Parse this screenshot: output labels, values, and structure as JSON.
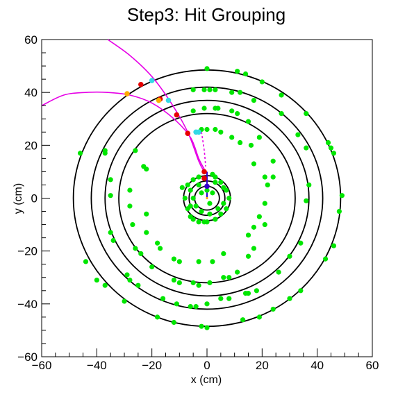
{
  "chart_data": {
    "type": "scatter",
    "title": "Step3: Hit Grouping",
    "xlabel": "x (cm)",
    "ylabel": "y (cm)",
    "xlim": [
      -60,
      60
    ],
    "ylim": [
      -60,
      60
    ],
    "xticks": [
      -60,
      -40,
      -20,
      0,
      20,
      40,
      60
    ],
    "yticks": [
      -60,
      -40,
      -20,
      0,
      20,
      40,
      60
    ],
    "tick_labels": {
      "x": [
        "−60",
        "−40",
        "−20",
        "0",
        "20",
        "40",
        "60"
      ],
      "y": [
        "−60",
        "−40",
        "−20",
        "0",
        "20",
        "40",
        "60"
      ]
    },
    "grid": false,
    "legend": "none",
    "colors": {
      "ring": "#000000",
      "hit": "#00e600",
      "grouped_hit_red": "#e60000",
      "grouped_hit_cyan": "#33d9e6",
      "grouped_hit_orange": "#ffaa00",
      "track": "#e600e6",
      "vertex": "#3300cc",
      "center": "#ffaa00"
    },
    "detector_rings": [
      {
        "r": 4.5
      },
      {
        "r": 6.5
      },
      {
        "r": 8.5
      },
      {
        "r": 32
      },
      {
        "r": 37
      },
      {
        "r": 42
      },
      {
        "r": 48.5
      }
    ],
    "tracks": [
      {
        "style": "solid",
        "points": [
          [
            -36,
            60
          ],
          [
            -28,
            54
          ],
          [
            -20,
            46
          ],
          [
            -13,
            36
          ],
          [
            -7,
            25
          ],
          [
            -3,
            14
          ],
          [
            -1,
            10
          ]
        ]
      },
      {
        "style": "solid",
        "points": [
          [
            -60,
            35
          ],
          [
            -52,
            39
          ],
          [
            -44,
            40
          ],
          [
            -36,
            40
          ],
          [
            -28,
            39
          ],
          [
            -20,
            36
          ],
          [
            -12,
            30
          ],
          [
            -6,
            23
          ],
          [
            -3,
            15
          ],
          [
            -1,
            11
          ]
        ]
      },
      {
        "style": "dotted",
        "points": [
          [
            -2,
            25
          ],
          [
            -1,
            18
          ],
          [
            -0.5,
            12
          ]
        ]
      }
    ],
    "vertex_line": {
      "points": [
        [
          0,
          0
        ],
        [
          0,
          10
        ]
      ]
    },
    "center_point": {
      "x": 0,
      "y": 0
    },
    "hits_green": [
      [
        0,
        49
      ],
      [
        11,
        48
      ],
      [
        14,
        47
      ],
      [
        20,
        44
      ],
      [
        27,
        39
      ],
      [
        36,
        32
      ],
      [
        44,
        21
      ],
      [
        45,
        19
      ],
      [
        46,
        17
      ],
      [
        49,
        1
      ],
      [
        48,
        -5
      ],
      [
        46,
        -18
      ],
      [
        43,
        -23
      ],
      [
        34,
        -35
      ],
      [
        30,
        -38
      ],
      [
        24,
        -42
      ],
      [
        19,
        -45
      ],
      [
        13,
        -46
      ],
      [
        0,
        -49
      ],
      [
        -2,
        -48.5
      ],
      [
        -12,
        -47
      ],
      [
        -18,
        -45
      ],
      [
        -30,
        -39
      ],
      [
        -37,
        -33
      ],
      [
        -40,
        -31
      ],
      [
        -44,
        -24
      ],
      [
        -46,
        17
      ],
      [
        -5,
        41
      ],
      [
        -1,
        41
      ],
      [
        1,
        41
      ],
      [
        3,
        41
      ],
      [
        9,
        40
      ],
      [
        12,
        40
      ],
      [
        17,
        37
      ],
      [
        27,
        32
      ],
      [
        33,
        24
      ],
      [
        36,
        19
      ],
      [
        37,
        5
      ],
      [
        36,
        -1
      ],
      [
        34,
        -17
      ],
      [
        30,
        -22
      ],
      [
        26,
        -28
      ],
      [
        18,
        -35
      ],
      [
        15,
        -36
      ],
      [
        14,
        -36
      ],
      [
        8,
        -38
      ],
      [
        5,
        -38
      ],
      [
        0,
        -40
      ],
      [
        -4,
        -41
      ],
      [
        -6,
        -41
      ],
      [
        -11,
        -40
      ],
      [
        -16,
        -38
      ],
      [
        -25,
        -33
      ],
      [
        -28,
        -31
      ],
      [
        -29,
        -29
      ],
      [
        -34,
        -16
      ],
      [
        -35,
        -13
      ],
      [
        -35,
        1
      ],
      [
        -35,
        7
      ],
      [
        -37,
        17
      ],
      [
        -37,
        18
      ],
      [
        -5,
        33
      ],
      [
        -1,
        34
      ],
      [
        3,
        34
      ],
      [
        4,
        34
      ],
      [
        9,
        33
      ],
      [
        11,
        32
      ],
      [
        15,
        29
      ],
      [
        19,
        23
      ],
      [
        24,
        14
      ],
      [
        24,
        8
      ],
      [
        21,
        -10
      ],
      [
        17,
        -19
      ],
      [
        15,
        -22
      ],
      [
        11,
        -28
      ],
      [
        8,
        -30
      ],
      [
        6,
        -30
      ],
      [
        1,
        -32
      ],
      [
        -3,
        -33
      ],
      [
        -5,
        -32
      ],
      [
        -10,
        -32
      ],
      [
        -12,
        -31
      ],
      [
        -20,
        -26
      ],
      [
        -24,
        -21
      ],
      [
        -26,
        -19
      ],
      [
        -27,
        -10
      ],
      [
        -28,
        -3
      ],
      [
        -28,
        3
      ],
      [
        -26,
        18
      ],
      [
        -2,
        26
      ],
      [
        0,
        26
      ],
      [
        3,
        26
      ],
      [
        5,
        25
      ],
      [
        9,
        23
      ],
      [
        12,
        21
      ],
      [
        16,
        20
      ],
      [
        17,
        13
      ],
      [
        21,
        8
      ],
      [
        22,
        5
      ],
      [
        21,
        -2
      ],
      [
        19,
        -7
      ],
      [
        17,
        -11
      ],
      [
        15,
        -14
      ],
      [
        6,
        -21
      ],
      [
        2,
        -24
      ],
      [
        -3,
        -24
      ],
      [
        -10,
        -24
      ],
      [
        -12,
        -23
      ],
      [
        -17,
        -19
      ],
      [
        -18,
        -17
      ],
      [
        -22,
        -13
      ],
      [
        -22,
        -6
      ],
      [
        -22,
        11
      ],
      [
        -23,
        12
      ],
      [
        -1,
        10
      ],
      [
        2,
        9
      ],
      [
        3,
        8
      ],
      [
        5,
        6
      ],
      [
        7,
        3
      ],
      [
        8,
        0
      ],
      [
        7,
        -4
      ],
      [
        5,
        -6
      ],
      [
        3,
        -8
      ],
      [
        0,
        -9
      ],
      [
        -1,
        -9
      ],
      [
        -3,
        -9
      ],
      [
        -5,
        -8
      ],
      [
        -6,
        -7
      ],
      [
        -7,
        -4
      ],
      [
        -8,
        0
      ],
      [
        -7,
        5
      ],
      [
        -5,
        7
      ],
      [
        -3,
        8
      ],
      [
        -9,
        4
      ],
      [
        -3,
        5
      ],
      [
        3,
        6
      ],
      [
        6,
        4
      ],
      [
        -2,
        -5
      ],
      [
        1,
        -6
      ],
      [
        4,
        -4
      ],
      [
        -6,
        3
      ],
      [
        -6,
        -3
      ],
      [
        6,
        -2
      ],
      [
        -5,
        0
      ],
      [
        0,
        3
      ],
      [
        1,
        -2
      ],
      [
        -2,
        2
      ],
      [
        2,
        2
      ],
      [
        -4,
        -3
      ]
    ],
    "hits_grouped": [
      {
        "x": -1,
        "y": 10,
        "c": "grouped_hit_red"
      },
      {
        "x": -7,
        "y": 24.5,
        "c": "grouped_hit_red"
      },
      {
        "x": -11,
        "y": 31.5,
        "c": "grouped_hit_red"
      },
      {
        "x": -17,
        "y": 37.5,
        "c": "grouped_hit_red"
      },
      {
        "x": -24,
        "y": 43,
        "c": "grouped_hit_red"
      },
      {
        "x": -1,
        "y": 7.5,
        "c": "grouped_hit_red"
      },
      {
        "x": -4,
        "y": 25,
        "c": "grouped_hit_cyan"
      },
      {
        "x": -14,
        "y": 37,
        "c": "grouped_hit_cyan"
      },
      {
        "x": -20,
        "y": 44.5,
        "c": "grouped_hit_cyan"
      },
      {
        "x": -3,
        "y": 25,
        "c": "grouped_hit_cyan"
      },
      {
        "x": -29,
        "y": 39.5,
        "c": "grouped_hit_orange"
      },
      {
        "x": -17.5,
        "y": 37,
        "c": "grouped_hit_orange"
      },
      {
        "x": 0,
        "y": 4.5,
        "c": "vertex"
      }
    ]
  }
}
